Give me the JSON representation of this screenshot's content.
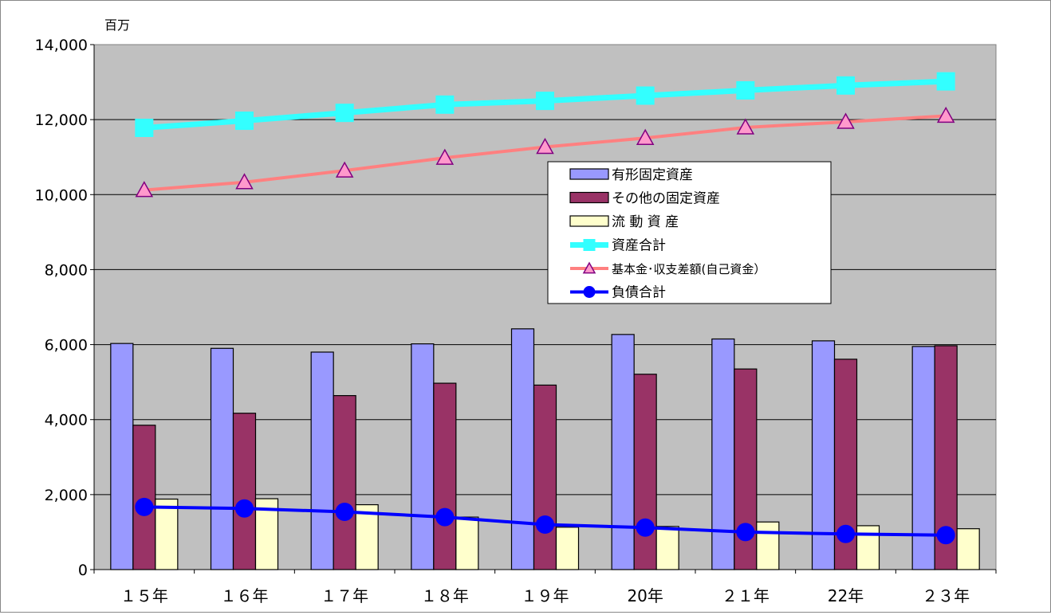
{
  "chart_data": {
    "type": "bar",
    "unit_label": "百万",
    "categories": [
      "１５年",
      "１６年",
      "１７年",
      "１８年",
      "１９年",
      "20年",
      "２１年",
      "22年",
      "２３年"
    ],
    "ylim": [
      0,
      14000
    ],
    "yticks": [
      0,
      2000,
      4000,
      6000,
      8000,
      10000,
      12000,
      14000
    ],
    "ytick_labels": [
      "0",
      "2,000",
      "4,000",
      "6,000",
      "8,000",
      "10,000",
      "12,000",
      "14,000"
    ],
    "grid": true,
    "plot_background": "#c0c0c0",
    "legend_position": "center-right",
    "bar_series": [
      {
        "name": "有形固定資産",
        "color": "#9999ff",
        "values": [
          6030,
          5900,
          5800,
          6020,
          6420,
          6270,
          6150,
          6100,
          5950
        ]
      },
      {
        "name": "その他の固定資産",
        "color": "#993366",
        "values": [
          3850,
          4170,
          4640,
          4970,
          4920,
          5210,
          5350,
          5610,
          5970
        ]
      },
      {
        "name": "流 動 資 産",
        "color": "#ffffcc",
        "values": [
          1880,
          1890,
          1730,
          1400,
          1130,
          1150,
          1270,
          1170,
          1090
        ]
      }
    ],
    "line_series": [
      {
        "name": "資産合計",
        "color": "#33ffff",
        "marker": "square",
        "values": [
          11780,
          11970,
          12180,
          12400,
          12500,
          12640,
          12780,
          12910,
          13020
        ]
      },
      {
        "name": "基本金･収支差額(自己資金）",
        "color": "#ff8080",
        "marker": "triangle",
        "values": [
          10120,
          10330,
          10640,
          10980,
          11270,
          11510,
          11790,
          11940,
          12100
        ]
      },
      {
        "name": "負債合計",
        "color": "#0000ff",
        "marker": "circle",
        "values": [
          1670,
          1630,
          1540,
          1400,
          1200,
          1120,
          1000,
          950,
          920
        ]
      }
    ]
  }
}
